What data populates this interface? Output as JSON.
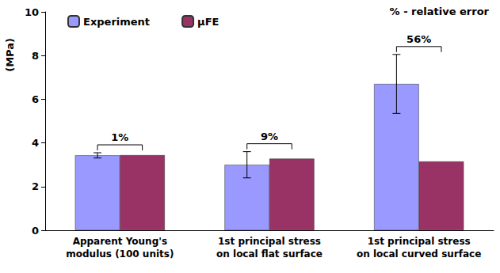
{
  "chart_data": {
    "type": "bar",
    "y_label": "(MPa)",
    "note": "% - relative error",
    "categories": [
      "Apparent Young's\nmodulus (100 units)",
      "1st principal stress\non local flat surface",
      "1st principal stress\non local curved surface"
    ],
    "series": [
      {
        "name": "Experiment",
        "color": "#9999ff",
        "values": [
          3.43,
          3.0,
          6.7
        ],
        "errors": [
          0.12,
          0.6,
          1.35
        ]
      },
      {
        "name": "μFE",
        "color": "#993366",
        "values": [
          3.44,
          3.28,
          3.15
        ]
      }
    ],
    "relative_errors": {
      "values": [
        1,
        9,
        56
      ],
      "value_labels": [
        "1%",
        "9%",
        "56%"
      ]
    },
    "ylim": [
      0,
      10
    ],
    "yticks": [
      0,
      2,
      4,
      6,
      8,
      10
    ],
    "grid": false,
    "legend": "top-left"
  }
}
